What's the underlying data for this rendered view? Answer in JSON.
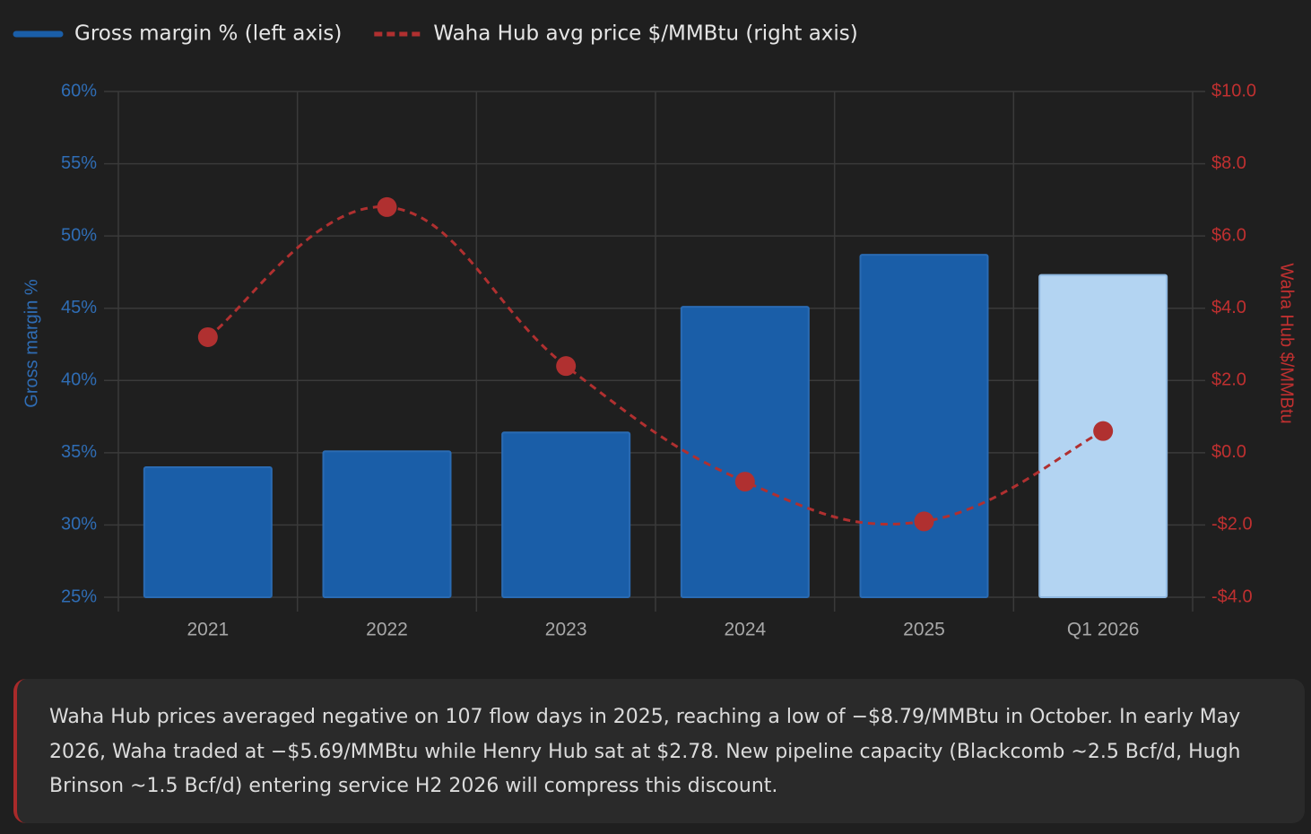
{
  "chart_data": {
    "type": "bar-line",
    "categories": [
      "2021",
      "2022",
      "2023",
      "2024",
      "2025",
      "Q1 2026"
    ],
    "series": [
      {
        "name": "Gross margin % (left axis)",
        "type": "bar",
        "color": "#1a5ea8",
        "colors": [
          "#1a5ea8",
          "#1a5ea8",
          "#1a5ea8",
          "#1a5ea8",
          "#1a5ea8",
          "#b3d4f2"
        ],
        "values": [
          34.0,
          35.1,
          36.4,
          45.1,
          48.7,
          47.3
        ]
      },
      {
        "name": "Waha Hub avg price $/MMBtu (right axis)",
        "type": "line",
        "axis": "y2",
        "color": "#b03030",
        "dashed": true,
        "values": [
          3.2,
          6.8,
          2.4,
          -0.8,
          -1.9,
          0.6
        ]
      }
    ],
    "ylabel": "Gross margin %",
    "y2label": "Waha Hub $/MMBtu",
    "ylim": [
      25,
      60
    ],
    "yticks": [
      {
        "value": 25,
        "label": "25%"
      },
      {
        "value": 30,
        "label": "30%"
      },
      {
        "value": 35,
        "label": "35%"
      },
      {
        "value": 40,
        "label": "40%"
      },
      {
        "value": 45,
        "label": "45%"
      },
      {
        "value": 50,
        "label": "50%"
      },
      {
        "value": 55,
        "label": "55%"
      },
      {
        "value": 60,
        "label": "60%"
      }
    ],
    "y2lim": [
      -4,
      10
    ],
    "y2ticks": [
      {
        "value": -4,
        "label": "-$4.0"
      },
      {
        "value": -2,
        "label": "-$2.0"
      },
      {
        "value": 0,
        "label": "$0.0"
      },
      {
        "value": 2,
        "label": "$2.0"
      },
      {
        "value": 4,
        "label": "$4.0"
      },
      {
        "value": 6,
        "label": "$6.0"
      },
      {
        "value": 8,
        "label": "$8.0"
      },
      {
        "value": 10,
        "label": "$10.0"
      }
    ],
    "grid": true,
    "legend": "top-left",
    "note": "Waha Hub prices averaged negative on 107 flow days in 2025, reaching a low of −$8.79/MMBtu in October. In early May 2026, Waha traded at −$5.69/MMBtu while Henry Hub sat at $2.78. New pipeline capacity (Blackcomb ~2.5 Bcf/d, Hugh Brinson ~1.5 Bcf/d) entering service H2 2026 will compress this discount."
  }
}
